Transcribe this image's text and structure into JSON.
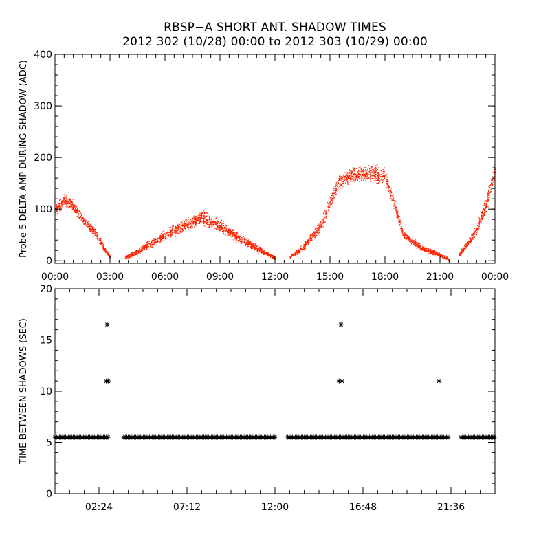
{
  "title": {
    "line1": "RBSP−A SHORT ANT. SHADOW TIMES",
    "line2": "2012 302 (10/28) 00:00 to 2012 303 (10/29) 00:00"
  },
  "chart_data": [
    {
      "type": "scatter",
      "name": "delta-amp",
      "ylabel": "Probe 5 DELTA AMP DURING SHADOW (ADC)",
      "xlabel": "",
      "xlim": [
        0,
        24
      ],
      "ylim": [
        -5,
        400
      ],
      "yticks": [
        0,
        100,
        200,
        300,
        400
      ],
      "xticks": [
        0,
        3,
        6,
        9,
        12,
        15,
        18,
        21,
        24
      ],
      "xtick_labels": [
        "00:00",
        "03:00",
        "06:00",
        "09:00",
        "12:00",
        "15:00",
        "18:00",
        "21:00",
        "00:00"
      ],
      "color": "#ff2200",
      "envelope": [
        {
          "x": 0.0,
          "y": 100,
          "spread": 18
        },
        {
          "x": 0.5,
          "y": 118,
          "spread": 16
        },
        {
          "x": 1.0,
          "y": 105,
          "spread": 15
        },
        {
          "x": 1.5,
          "y": 80,
          "spread": 14
        },
        {
          "x": 2.0,
          "y": 62,
          "spread": 12
        },
        {
          "x": 2.3,
          "y": 50,
          "spread": 12
        },
        {
          "x": 2.7,
          "y": 22,
          "spread": 8
        },
        {
          "x": 3.0,
          "y": 8,
          "spread": 4
        },
        {
          "x": 3.8,
          "y": 6,
          "spread": 4
        },
        {
          "x": 4.5,
          "y": 18,
          "spread": 8
        },
        {
          "x": 5.0,
          "y": 30,
          "spread": 10
        },
        {
          "x": 6.0,
          "y": 50,
          "spread": 14
        },
        {
          "x": 7.0,
          "y": 68,
          "spread": 16
        },
        {
          "x": 8.0,
          "y": 85,
          "spread": 18
        },
        {
          "x": 9.0,
          "y": 68,
          "spread": 16
        },
        {
          "x": 10.0,
          "y": 45,
          "spread": 12
        },
        {
          "x": 11.0,
          "y": 25,
          "spread": 10
        },
        {
          "x": 12.0,
          "y": 5,
          "spread": 4
        },
        {
          "x": 12.8,
          "y": 8,
          "spread": 4
        },
        {
          "x": 13.5,
          "y": 25,
          "spread": 8
        },
        {
          "x": 14.5,
          "y": 70,
          "spread": 14
        },
        {
          "x": 15.0,
          "y": 115,
          "spread": 18
        },
        {
          "x": 15.5,
          "y": 155,
          "spread": 20
        },
        {
          "x": 16.0,
          "y": 165,
          "spread": 20
        },
        {
          "x": 17.0,
          "y": 170,
          "spread": 22
        },
        {
          "x": 18.0,
          "y": 165,
          "spread": 22
        },
        {
          "x": 18.5,
          "y": 110,
          "spread": 20
        },
        {
          "x": 19.0,
          "y": 50,
          "spread": 10
        },
        {
          "x": 20.0,
          "y": 25,
          "spread": 8
        },
        {
          "x": 21.0,
          "y": 12,
          "spread": 6
        },
        {
          "x": 21.5,
          "y": 3,
          "spread": 3
        },
        {
          "x": 22.0,
          "y": 10,
          "spread": 5
        },
        {
          "x": 23.0,
          "y": 60,
          "spread": 14
        },
        {
          "x": 23.5,
          "y": 110,
          "spread": 20
        },
        {
          "x": 24.0,
          "y": 180,
          "spread": 24
        }
      ],
      "gaps": [
        [
          3.0,
          3.8
        ],
        [
          12.0,
          12.8
        ],
        [
          21.5,
          22.0
        ]
      ]
    },
    {
      "type": "scatter",
      "name": "time-between-shadows",
      "ylabel": "TIME BETWEEN SHADOWS (SEC)",
      "xlabel": "",
      "xlim": [
        0,
        24
      ],
      "ylim": [
        0,
        20
      ],
      "yticks": [
        0,
        5,
        10,
        15,
        20
      ],
      "xticks": [
        2.4,
        7.2,
        12.0,
        16.8,
        21.6
      ],
      "xtick_labels": [
        "02:24",
        "07:12",
        "12:00",
        "16:48",
        "21:36"
      ],
      "color": "#000000",
      "baseline_value": 5.5,
      "baseline_segments": [
        [
          0.0,
          2.9
        ],
        [
          3.75,
          12.0
        ],
        [
          12.7,
          21.5
        ],
        [
          22.15,
          24.0
        ]
      ],
      "outliers": [
        {
          "x": 2.85,
          "y": 16.5
        },
        {
          "x": 2.8,
          "y": 11.0
        },
        {
          "x": 2.9,
          "y": 11.0
        },
        {
          "x": 15.5,
          "y": 11.0
        },
        {
          "x": 15.65,
          "y": 11.0
        },
        {
          "x": 15.6,
          "y": 16.5
        },
        {
          "x": 20.95,
          "y": 11.0
        }
      ]
    }
  ]
}
